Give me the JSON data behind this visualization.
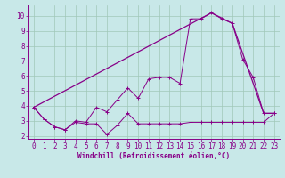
{
  "bg_color": "#c8e8e8",
  "grid_color": "#a0c8b8",
  "line_color": "#880088",
  "xlim_min": -0.5,
  "xlim_max": 23.5,
  "ylim_min": 1.8,
  "ylim_max": 10.7,
  "yticks": [
    2,
    3,
    4,
    5,
    6,
    7,
    8,
    9,
    10
  ],
  "xticks": [
    0,
    1,
    2,
    3,
    4,
    5,
    6,
    7,
    8,
    9,
    10,
    11,
    12,
    13,
    14,
    15,
    16,
    17,
    18,
    19,
    20,
    21,
    22,
    23
  ],
  "xlabel": "Windchill (Refroidissement éolien,°C)",
  "line_curve_x": [
    0,
    1,
    2,
    3,
    4,
    5,
    6,
    7,
    8,
    9,
    10,
    11,
    12,
    13,
    14,
    15,
    16,
    17,
    18,
    19,
    20,
    21,
    22,
    23
  ],
  "line_curve_y": [
    3.9,
    3.1,
    2.6,
    2.4,
    3.0,
    2.9,
    3.9,
    3.6,
    4.4,
    5.2,
    4.5,
    5.8,
    5.9,
    5.9,
    5.5,
    9.8,
    9.8,
    10.2,
    9.8,
    9.5,
    7.1,
    5.9,
    3.5,
    3.5
  ],
  "line_flat_x": [
    0,
    1,
    2,
    3,
    4,
    5,
    6,
    7,
    8,
    9,
    10,
    11,
    12,
    13,
    14,
    15,
    16,
    17,
    18,
    19,
    20,
    21,
    22,
    23
  ],
  "line_flat_y": [
    3.9,
    3.1,
    2.6,
    2.4,
    2.9,
    2.8,
    2.8,
    2.1,
    2.7,
    3.5,
    2.8,
    2.8,
    2.8,
    2.8,
    2.8,
    2.9,
    2.9,
    2.9,
    2.9,
    2.9,
    2.9,
    2.9,
    2.9,
    3.5
  ],
  "line_diag_x": [
    0,
    17,
    19,
    22,
    23
  ],
  "line_diag_y": [
    3.9,
    10.2,
    9.5,
    3.5,
    3.5
  ],
  "tick_fontsize": 5.5,
  "xlabel_fontsize": 5.5
}
